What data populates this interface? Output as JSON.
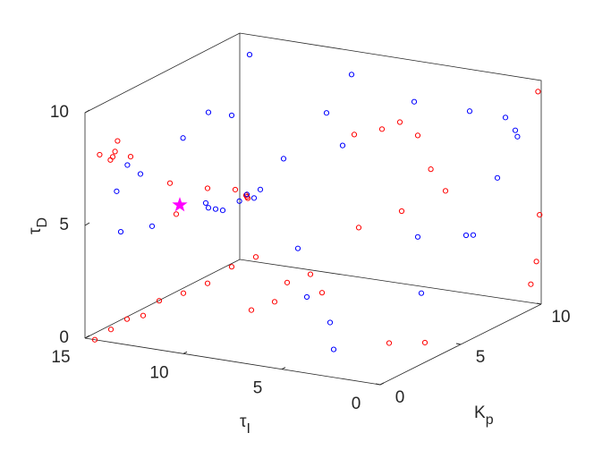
{
  "chart_data": {
    "type": "scatter3d",
    "xlabel": {
      "text": "τ",
      "sub": "I"
    },
    "ylabel": {
      "text": "K",
      "sub": "p"
    },
    "zlabel": {
      "text": "τ",
      "sub": "D"
    },
    "xlim": [
      0,
      15
    ],
    "ylim": [
      0,
      10
    ],
    "zlim": [
      0,
      10
    ],
    "xticks": [
      0,
      5,
      10,
      15
    ],
    "yticks": [
      0,
      5,
      10
    ],
    "zticks": [
      0,
      5,
      10
    ],
    "grid": false,
    "series": [
      {
        "color": "#ff0000",
        "marker": "circle",
        "x": [
          14.5,
          14.5,
          14.5,
          14.5,
          14.5,
          14.5,
          14.5,
          14.5,
          14.5,
          14,
          14.2,
          13.8,
          14,
          13.5,
          14.5,
          11.5,
          10,
          9,
          8,
          8.2,
          7.8,
          4,
          3.5,
          5,
          3,
          2.5,
          2,
          3,
          0,
          0,
          0,
          0.2,
          6,
          5,
          7,
          2,
          1,
          9,
          8,
          12,
          6
        ],
        "y": [
          0,
          1,
          2,
          3,
          4,
          5.5,
          7,
          8.5,
          10,
          0.5,
          0.6,
          0.4,
          0.8,
          1,
          0.3,
          1,
          1.5,
          2,
          1.5,
          1.8,
          1.2,
          5,
          5.5,
          4.5,
          6,
          6.2,
          6.5,
          5,
          9.8,
          9.9,
          9.7,
          9.6,
          3,
          2.5,
          2,
          3,
          4,
          3,
          4,
          2,
          6
        ],
        "z": [
          0,
          0.1,
          0.2,
          0,
          0.3,
          0.1,
          0,
          0.2,
          0.1,
          8,
          7.8,
          8.3,
          8.6,
          7.9,
          8.1,
          7,
          6.8,
          6.7,
          6.7,
          6.5,
          6.9,
          9,
          9.2,
          8.8,
          8.5,
          7,
          6,
          5.5,
          9.5,
          4,
          2,
          1,
          3,
          2.5,
          2,
          0.5,
          0.3,
          1,
          2,
          5.2,
          4
        ]
      },
      {
        "color": "#0000ff",
        "marker": "circle",
        "x": [
          10,
          10.2,
          9.8,
          10.5,
          8,
          7.8,
          8.3,
          13.5,
          13,
          13.8,
          14,
          12,
          11,
          10,
          6,
          4,
          2,
          1,
          0.5,
          0.8,
          1,
          3,
          2,
          5,
          7,
          4,
          9,
          6,
          12,
          14,
          8,
          5,
          11,
          3,
          1
        ],
        "y": [
          2,
          1.8,
          2.2,
          2,
          1.5,
          1.7,
          1.4,
          0.8,
          1,
          0.5,
          1,
          0.5,
          1.2,
          3,
          4,
          7,
          8,
          9,
          9,
          9.5,
          8.5,
          6,
          5,
          3,
          4,
          2,
          5,
          5,
          4,
          9,
          8,
          1,
          6,
          9,
          7
        ],
        "z": [
          5.7,
          5.8,
          5.6,
          5.9,
          6.8,
          6.6,
          6.5,
          7.6,
          7.2,
          6.5,
          4.5,
          5.2,
          9,
          9.5,
          9.8,
          9.5,
          9,
          8.5,
          8,
          7.5,
          6,
          4,
          2,
          1,
          1.5,
          0.3,
          7,
          8,
          9,
          9.5,
          9.8,
          5,
          5,
          3,
          4
        ]
      },
      {
        "color": "#ff00ff",
        "marker": "star",
        "x": [
          11
        ],
        "y": [
          1
        ],
        "z": [
          6.1
        ]
      }
    ]
  }
}
